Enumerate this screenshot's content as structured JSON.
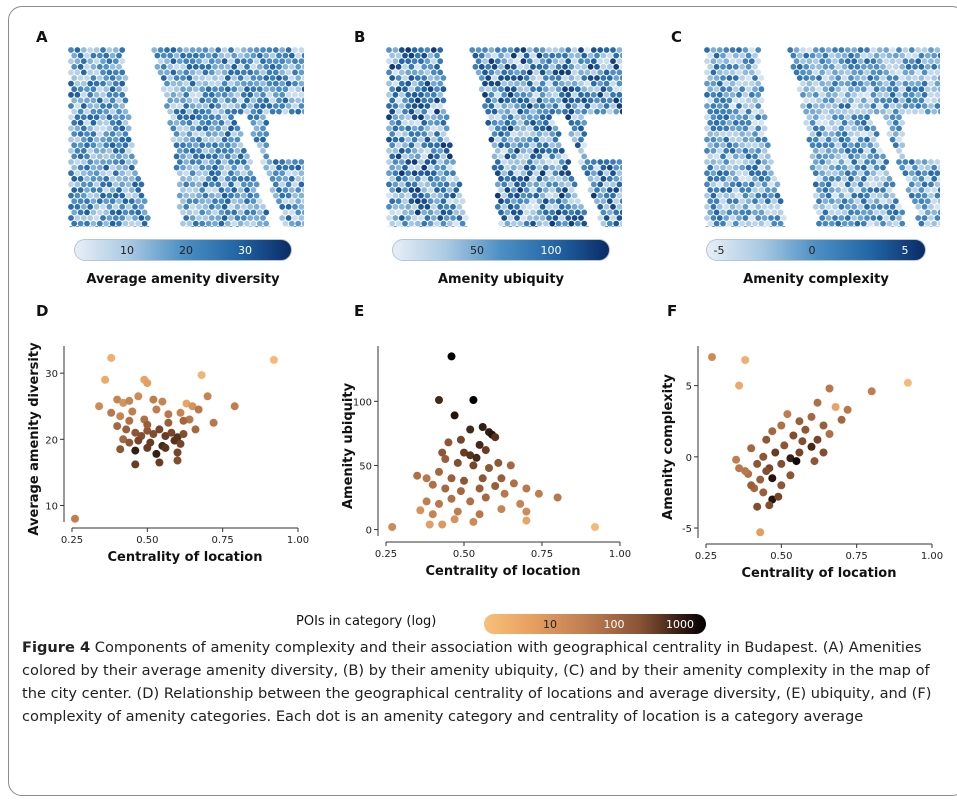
{
  "panel_letters": {
    "A": "A",
    "B": "B",
    "C": "C",
    "D": "D",
    "E": "E",
    "F": "F"
  },
  "maps": [
    {
      "id": "A",
      "colorbar_title": "Average amenity diversity",
      "ticks": [
        "10",
        "20",
        "30"
      ]
    },
    {
      "id": "B",
      "colorbar_title": "Amenity ubiquity",
      "ticks": [
        "50",
        "100"
      ]
    },
    {
      "id": "C",
      "colorbar_title": "Amenity complexity",
      "ticks": [
        "-5",
        "0",
        "5"
      ]
    }
  ],
  "colors": {
    "map_low": "#e7eff7",
    "map_mid": "#4d8fc4",
    "map_high": "#0b2b66",
    "poi_low": "#f8bf7b",
    "poi_high": "#000000"
  },
  "chart_data": [
    {
      "id": "D",
      "type": "scatter",
      "xlabel": "Centrality of location",
      "ylabel": "Average amenity diversity",
      "xlim": [
        0.25,
        1.0
      ],
      "ylim": [
        7.5,
        33.5
      ],
      "xticks": [
        "0.25",
        "0.50",
        "0.75",
        "1.00"
      ],
      "yticks": [
        "10",
        "20",
        "30"
      ],
      "points": [
        [
          0.26,
          8,
          2.5
        ],
        [
          0.38,
          32.3,
          1.7
        ],
        [
          0.36,
          29.0,
          1.8
        ],
        [
          0.49,
          29.0,
          1.9
        ],
        [
          0.5,
          28.5,
          2.0
        ],
        [
          0.68,
          29.7,
          1.6
        ],
        [
          0.92,
          32.0,
          1.5
        ],
        [
          0.34,
          25.0,
          2.3
        ],
        [
          0.4,
          26.0,
          2.4
        ],
        [
          0.42,
          25.5,
          2.2
        ],
        [
          0.44,
          25.8,
          2.4
        ],
        [
          0.47,
          26.5,
          2.3
        ],
        [
          0.52,
          26.0,
          2.5
        ],
        [
          0.55,
          25.7,
          2.4
        ],
        [
          0.63,
          25.4,
          1.9
        ],
        [
          0.65,
          25.0,
          2.2
        ],
        [
          0.7,
          26.5,
          2.4
        ],
        [
          0.72,
          22.5,
          2.6
        ],
        [
          0.79,
          25.0,
          2.5
        ],
        [
          0.38,
          24.0,
          2.6
        ],
        [
          0.41,
          23.5,
          2.4
        ],
        [
          0.45,
          24.2,
          2.5
        ],
        [
          0.49,
          23.0,
          2.7
        ],
        [
          0.53,
          24.5,
          2.5
        ],
        [
          0.57,
          23.8,
          2.6
        ],
        [
          0.61,
          24.0,
          2.4
        ],
        [
          0.64,
          23.0,
          2.6
        ],
        [
          0.67,
          24.5,
          2.6
        ],
        [
          0.4,
          22.0,
          2.8
        ],
        [
          0.43,
          21.5,
          2.9
        ],
        [
          0.46,
          21.0,
          3.0
        ],
        [
          0.48,
          20.5,
          3.1
        ],
        [
          0.5,
          21.3,
          3.0
        ],
        [
          0.52,
          20.8,
          3.1
        ],
        [
          0.54,
          21.5,
          3.2
        ],
        [
          0.56,
          20.5,
          3.3
        ],
        [
          0.58,
          21.0,
          3.2
        ],
        [
          0.6,
          20.3,
          3.4
        ],
        [
          0.62,
          20.8,
          3.1
        ],
        [
          0.42,
          20.0,
          2.8
        ],
        [
          0.44,
          19.5,
          3.0
        ],
        [
          0.47,
          19.8,
          3.2
        ],
        [
          0.51,
          19.5,
          3.3
        ],
        [
          0.55,
          19.0,
          3.5
        ],
        [
          0.59,
          19.8,
          3.4
        ],
        [
          0.61,
          19.3,
          3.2
        ],
        [
          0.41,
          18.5,
          3.0
        ],
        [
          0.46,
          18.3,
          3.6
        ],
        [
          0.5,
          18.7,
          3.3
        ],
        [
          0.53,
          17.8,
          3.6
        ],
        [
          0.56,
          18.7,
          3.4
        ],
        [
          0.6,
          18.0,
          3.2
        ],
        [
          0.46,
          16.2,
          3.3
        ],
        [
          0.54,
          16.5,
          3.3
        ],
        [
          0.6,
          16.8,
          3.1
        ],
        [
          0.62,
          22.8,
          2.8
        ],
        [
          0.44,
          22.8,
          2.7
        ],
        [
          0.5,
          22.2,
          2.9
        ],
        [
          0.57,
          22.5,
          2.9
        ],
        [
          0.66,
          21.5,
          2.8
        ]
      ]
    },
    {
      "id": "E",
      "type": "scatter",
      "xlabel": "Centrality of location",
      "ylabel": "Amenity ubiquity",
      "xlim": [
        0.25,
        1.0
      ],
      "ylim": [
        -5,
        140
      ],
      "xticks": [
        "0.25",
        "0.50",
        "0.75",
        "1.00"
      ],
      "yticks": [
        "0",
        "50",
        "100"
      ],
      "points": [
        [
          0.27,
          2,
          2.3
        ],
        [
          0.46,
          135,
          3.9
        ],
        [
          0.42,
          101,
          3.5
        ],
        [
          0.53,
          101,
          3.9
        ],
        [
          0.47,
          89,
          3.7
        ],
        [
          0.56,
          80,
          3.6
        ],
        [
          0.52,
          78,
          3.5
        ],
        [
          0.58,
          76,
          3.6
        ],
        [
          0.59,
          74,
          3.7
        ],
        [
          0.6,
          72,
          3.4
        ],
        [
          0.45,
          68,
          3.0
        ],
        [
          0.49,
          70,
          3.2
        ],
        [
          0.55,
          66,
          3.5
        ],
        [
          0.5,
          60,
          3.3
        ],
        [
          0.52,
          58,
          3.4
        ],
        [
          0.54,
          56,
          3.5
        ],
        [
          0.57,
          62,
          3.3
        ],
        [
          0.43,
          60,
          3.0
        ],
        [
          0.44,
          55,
          2.9
        ],
        [
          0.48,
          52,
          3.1
        ],
        [
          0.53,
          50,
          3.2
        ],
        [
          0.58,
          48,
          3.0
        ],
        [
          0.61,
          52,
          3.0
        ],
        [
          0.65,
          50,
          2.8
        ],
        [
          0.35,
          42,
          2.7
        ],
        [
          0.38,
          40,
          2.6
        ],
        [
          0.42,
          45,
          2.8
        ],
        [
          0.46,
          40,
          2.9
        ],
        [
          0.5,
          38,
          3.0
        ],
        [
          0.56,
          40,
          3.0
        ],
        [
          0.62,
          40,
          2.9
        ],
        [
          0.4,
          35,
          2.7
        ],
        [
          0.44,
          32,
          2.8
        ],
        [
          0.49,
          30,
          2.8
        ],
        [
          0.55,
          32,
          2.9
        ],
        [
          0.6,
          34,
          2.9
        ],
        [
          0.66,
          36,
          2.7
        ],
        [
          0.7,
          32,
          2.6
        ],
        [
          0.74,
          28,
          2.5
        ],
        [
          0.8,
          25,
          2.6
        ],
        [
          0.38,
          22,
          2.5
        ],
        [
          0.42,
          20,
          2.6
        ],
        [
          0.46,
          24,
          2.7
        ],
        [
          0.52,
          22,
          2.7
        ],
        [
          0.57,
          25,
          2.8
        ],
        [
          0.63,
          28,
          2.6
        ],
        [
          0.68,
          20,
          2.4
        ],
        [
          0.36,
          15,
          2.2
        ],
        [
          0.4,
          12,
          2.4
        ],
        [
          0.48,
          14,
          2.5
        ],
        [
          0.55,
          12,
          2.6
        ],
        [
          0.62,
          16,
          2.4
        ],
        [
          0.7,
          14,
          2.3
        ],
        [
          0.39,
          4,
          2.0
        ],
        [
          0.43,
          4,
          2.1
        ],
        [
          0.47,
          8,
          2.2
        ],
        [
          0.53,
          6,
          2.3
        ],
        [
          0.7,
          7,
          1.9
        ],
        [
          0.92,
          2,
          1.5
        ]
      ]
    },
    {
      "id": "F",
      "type": "scatter",
      "xlabel": "Centrality of location",
      "ylabel": "Amenity complexity",
      "xlim": [
        0.25,
        1.0
      ],
      "ylim": [
        -5.7,
        7.5
      ],
      "xticks": [
        "0.25",
        "0.50",
        "0.75",
        "1.00"
      ],
      "yticks": [
        "-5",
        "0",
        "5"
      ],
      "points": [
        [
          0.27,
          7.0,
          2.3
        ],
        [
          0.38,
          6.8,
          1.7
        ],
        [
          0.36,
          5.0,
          1.8
        ],
        [
          0.92,
          5.2,
          1.5
        ],
        [
          0.8,
          4.6,
          2.5
        ],
        [
          0.66,
          4.8,
          2.6
        ],
        [
          0.72,
          3.3,
          2.6
        ],
        [
          0.68,
          3.5,
          1.9
        ],
        [
          0.62,
          3.8,
          2.7
        ],
        [
          0.6,
          2.8,
          2.8
        ],
        [
          0.56,
          2.5,
          2.9
        ],
        [
          0.52,
          3.0,
          2.5
        ],
        [
          0.7,
          2.6,
          2.8
        ],
        [
          0.64,
          2.2,
          2.9
        ],
        [
          0.58,
          1.9,
          3.0
        ],
        [
          0.54,
          1.5,
          3.1
        ],
        [
          0.5,
          2.2,
          2.7
        ],
        [
          0.47,
          1.8,
          2.8
        ],
        [
          0.45,
          1.2,
          3.0
        ],
        [
          0.62,
          1.2,
          3.2
        ],
        [
          0.6,
          0.7,
          3.5
        ],
        [
          0.64,
          0.3,
          3.1
        ],
        [
          0.56,
          0.3,
          3.2
        ],
        [
          0.53,
          -0.1,
          3.6
        ],
        [
          0.55,
          -0.3,
          3.8
        ],
        [
          0.48,
          0.3,
          3.3
        ],
        [
          0.44,
          0.0,
          3.0
        ],
        [
          0.4,
          0.6,
          2.8
        ],
        [
          0.42,
          -0.5,
          3.0
        ],
        [
          0.46,
          -0.8,
          3.2
        ],
        [
          0.5,
          -0.5,
          3.1
        ],
        [
          0.36,
          -0.8,
          2.6
        ],
        [
          0.39,
          -1.2,
          2.7
        ],
        [
          0.43,
          -1.6,
          2.9
        ],
        [
          0.47,
          -1.5,
          3.7
        ],
        [
          0.5,
          -2.0,
          3.0
        ],
        [
          0.53,
          -1.3,
          3.0
        ],
        [
          0.41,
          -2.2,
          2.8
        ],
        [
          0.44,
          -2.5,
          2.9
        ],
        [
          0.47,
          -3.0,
          3.7
        ],
        [
          0.49,
          -2.8,
          3.2
        ],
        [
          0.42,
          -3.5,
          3.1
        ],
        [
          0.4,
          -2.0,
          2.9
        ],
        [
          0.45,
          -1.0,
          3.1
        ],
        [
          0.51,
          0.8,
          3.0
        ],
        [
          0.57,
          1.1,
          3.1
        ],
        [
          0.66,
          1.6,
          2.7
        ],
        [
          0.35,
          -0.2,
          2.5
        ],
        [
          0.43,
          -5.3,
          2.0
        ],
        [
          0.46,
          -3.4,
          3.1
        ],
        [
          0.38,
          -1.0,
          2.6
        ],
        [
          0.61,
          -0.3,
          3.0
        ]
      ]
    }
  ],
  "legend": {
    "title": "POIs in category (log)",
    "ticks": [
      "10",
      "100",
      "1000"
    ]
  },
  "caption": {
    "label": "Figure 4",
    "text": "  Components of amenity complexity and their association with geographical centrality in Budapest. (A) Amenities colored by their average amenity diversity, (B) by their amenity ubiquity, (C) and by their amenity complexity in the map of the city center. (D) Relationship between the geographical centrality of locations and average diversity, (E) ubiquity, and (F) complexity of amenity categories. Each dot is an amenity category and centrality of location is a category average"
  }
}
